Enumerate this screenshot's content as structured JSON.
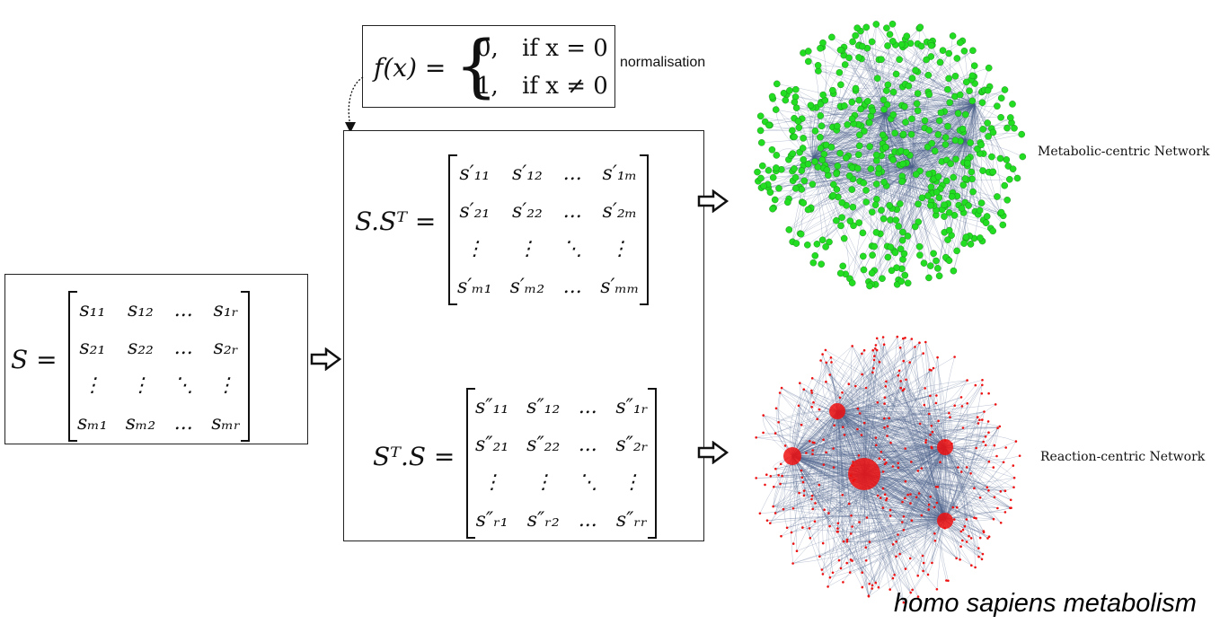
{
  "normalisation": {
    "lhs": "f(x) =",
    "case1_value": "0,",
    "case1_cond": "if x = 0",
    "case2_value": "1,",
    "case2_cond": "if x ≠ 0",
    "label": "normalisation"
  },
  "S_matrix": {
    "lhs": "S =",
    "rows": [
      [
        "s₁₁",
        "s₁₂",
        "...",
        "s₁ᵣ"
      ],
      [
        "s₂₁",
        "s₂₂",
        "...",
        "s₂ᵣ"
      ],
      [
        "⋮",
        "⋮",
        "⋱",
        "⋮"
      ],
      [
        "sₘ₁",
        "sₘ₂",
        "...",
        "sₘᵣ"
      ]
    ]
  },
  "SST_matrix": {
    "lhs": "S.Sᵀ =",
    "rows": [
      [
        "s′₁₁",
        "s′₁₂",
        "...",
        "s′₁ₘ"
      ],
      [
        "s′₂₁",
        "s′₂₂",
        "...",
        "s′₂ₘ"
      ],
      [
        "⋮",
        "⋮",
        "⋱",
        "⋮"
      ],
      [
        "s′ₘ₁",
        "s′ₘ₂",
        "...",
        "s′ₘₘ"
      ]
    ]
  },
  "STS_matrix": {
    "lhs": "Sᵀ.S =",
    "rows": [
      [
        "s″₁₁",
        "s″₁₂",
        "...",
        "s″₁ᵣ"
      ],
      [
        "s″₂₁",
        "s″₂₂",
        "...",
        "s″₂ᵣ"
      ],
      [
        "⋮",
        "⋮",
        "⋱",
        "⋮"
      ],
      [
        "s″ᵣ₁",
        "s″ᵣ₂",
        "...",
        "s″ᵣᵣ"
      ]
    ]
  },
  "networks": {
    "metabolic_label": "Metabolic-centric Network",
    "reaction_label": "Reaction-centric Network",
    "metabolic_node_color": "#22dd22",
    "reaction_node_color": "#ee1111",
    "edge_color": "#4a5f8a"
  },
  "caption": "homo sapiens metabolism"
}
